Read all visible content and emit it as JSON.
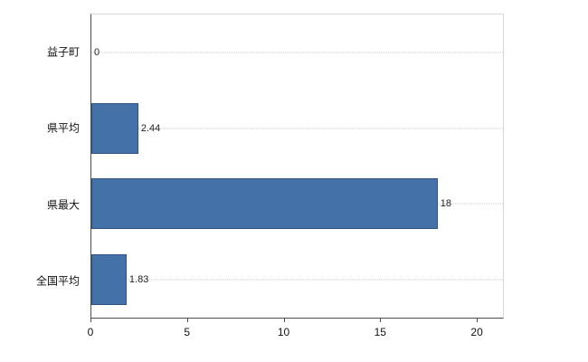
{
  "chart_data": {
    "type": "bar",
    "orientation": "horizontal",
    "title": "",
    "xlabel": "",
    "ylabel": "",
    "categories": [
      "益子町",
      "県平均",
      "県最大",
      "全国平均"
    ],
    "values": [
      0,
      2.44,
      18,
      1.83
    ],
    "value_labels": [
      "0",
      "2.44",
      "18",
      "1.83"
    ],
    "axis_max": 21.4,
    "xlim": [
      0,
      21.4
    ],
    "x_ticks": [
      0,
      5,
      10,
      15,
      20
    ],
    "x_tick_labels": [
      "0",
      "5",
      "10",
      "15",
      "20"
    ],
    "legend": "none",
    "grid": "dotted-horizontal-per-category",
    "bar_color": "#4472a8",
    "bar_border_color": "#2d5380",
    "gridline_color": "#c9c9c9"
  }
}
